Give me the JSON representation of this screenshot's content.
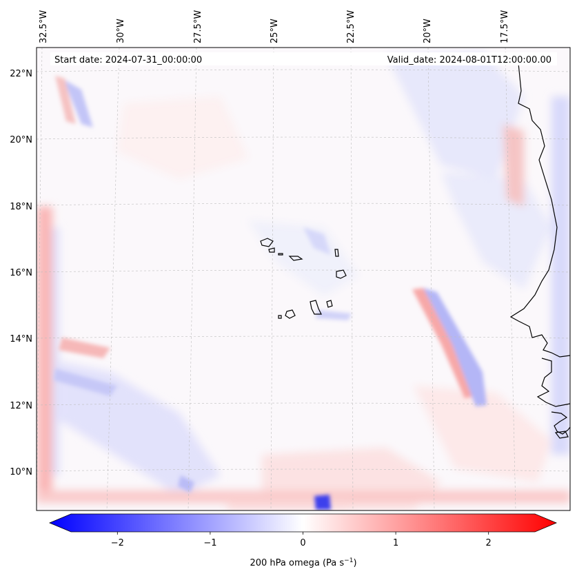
{
  "map": {
    "start_date_text": "Start date: 2024-07-31_00:00:00",
    "valid_date_text": "Valid_date: 2024-08-01T12:00:00.00",
    "lon_labels": [
      "32.5°W",
      "30°W",
      "27.5°W",
      "25°W",
      "22.5°W",
      "20°W",
      "17.5°W"
    ],
    "lat_labels": [
      "22°N",
      "20°N",
      "18°N",
      "16°N",
      "14°N",
      "12°N",
      "10°N"
    ],
    "field": "200 hPa omega",
    "features": [
      "Cape Verde islands",
      "West African coastline"
    ]
  },
  "colorbar": {
    "label_text": "200 hPa omega (Pa s",
    "label_sup": "−1",
    "label_close": ")",
    "ticks": [
      "−2",
      "−1",
      "0",
      "1",
      "2"
    ],
    "tick_values": [
      -2,
      -1,
      0,
      1,
      2
    ],
    "range": [
      -2.5,
      2.5
    ],
    "low_color": "#0000ff",
    "mid_color": "#ffffff",
    "high_color": "#ff0000"
  }
}
